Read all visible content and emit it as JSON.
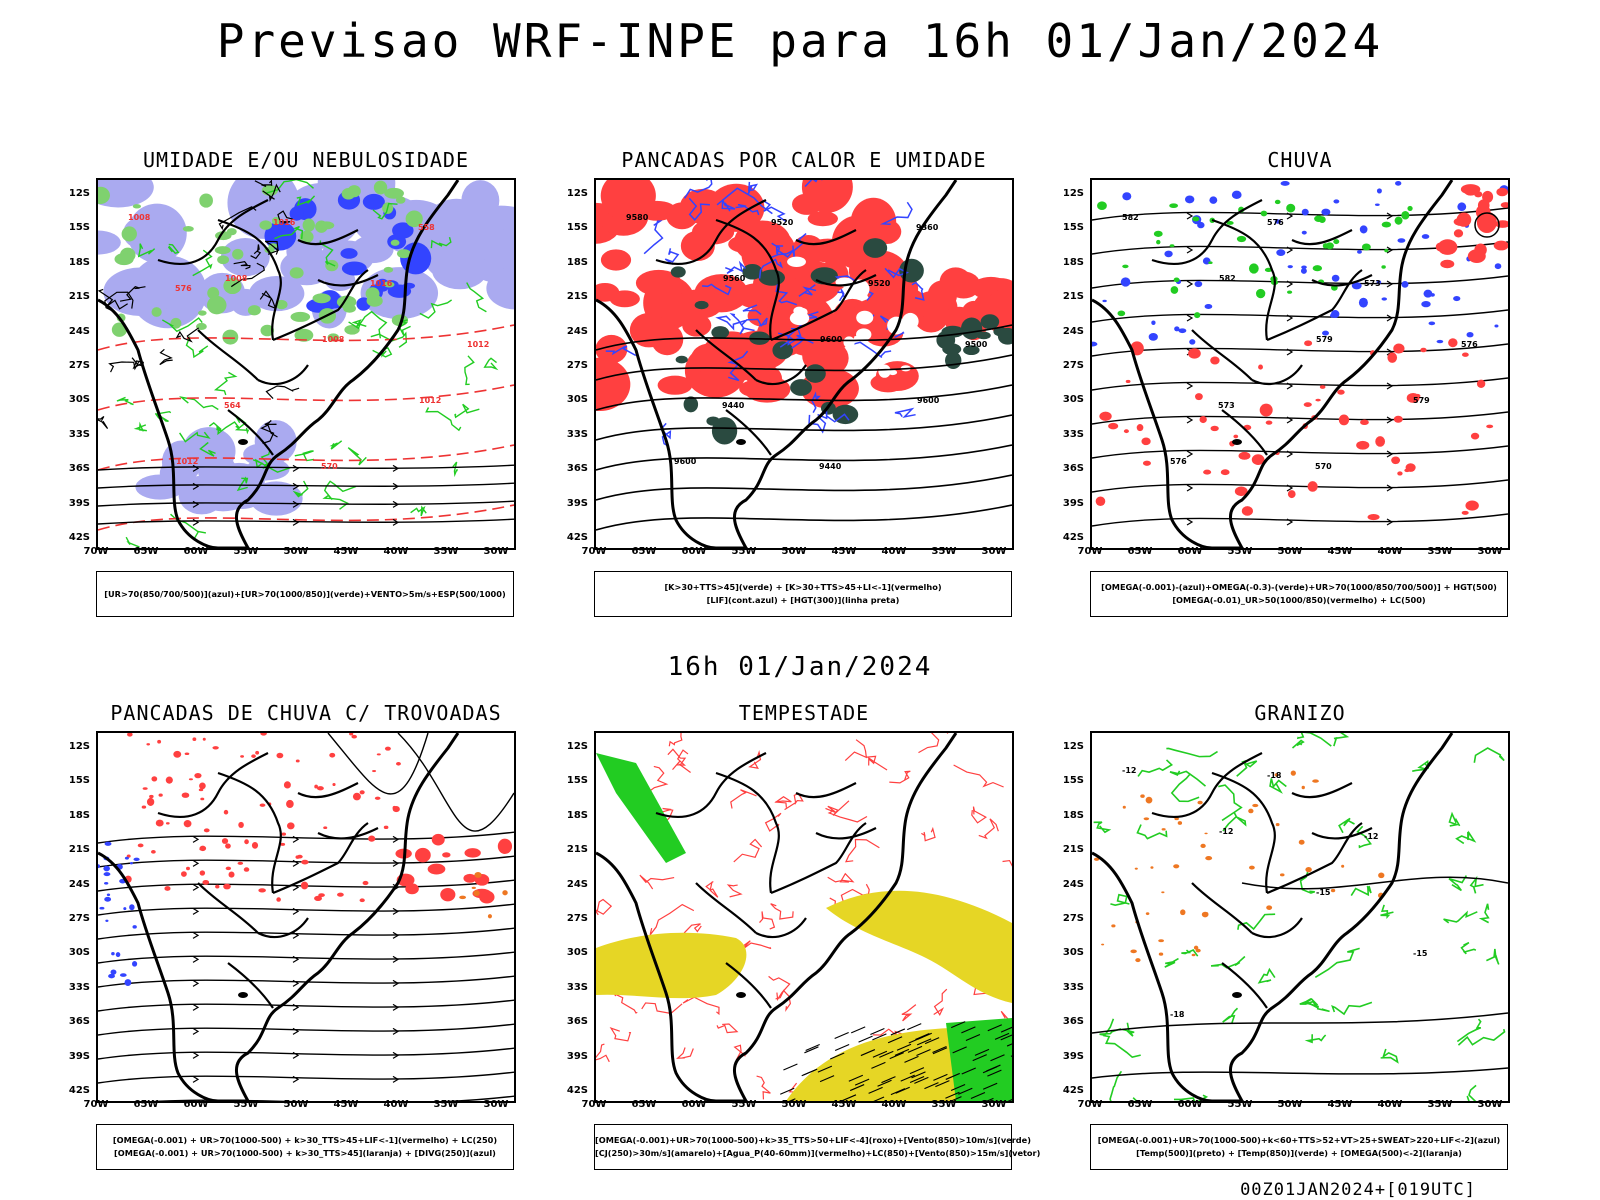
{
  "title": "Previsao WRF-INPE  para 16h 01/Jan/2024",
  "subtitle": "16h 01/Jan/2024",
  "footer": "00Z01JAN2024+[019UTC]",
  "lat_labels": [
    "12S",
    "15S",
    "18S",
    "21S",
    "24S",
    "27S",
    "30S",
    "33S",
    "36S",
    "39S",
    "42S"
  ],
  "lon_labels": [
    "70W",
    "65W",
    "60W",
    "55W",
    "50W",
    "45W",
    "40W",
    "35W",
    "30W"
  ],
  "colors": {
    "red": "#ff4040",
    "green": "#22cc22",
    "blue": "#3344ff",
    "lavender": "#aaaaf0",
    "yellow": "#e6d625",
    "orange": "#ee7722",
    "dark_teal": "#2a4a40"
  },
  "panels": [
    {
      "id": "umidade",
      "title": "UMIDADE E/OU NEBULOSIDADE",
      "legend": [
        "[UR>70(850/700/500)](azul)+[UR>70(1000/850)](verde)+VENTO>5m/s+ESP(500/1000)"
      ],
      "contour_labels": [
        "1008",
        "1008",
        "1008",
        "1012",
        "1012",
        "1016",
        "1016",
        "1012",
        "564",
        "570",
        "558",
        "576"
      ]
    },
    {
      "id": "pancadas-calor",
      "title": "PANCADAS POR CALOR E UMIDADE",
      "legend": [
        "[K>30+TTS>45](verde) + [K>30+TTS>45+LI<-1](vermelho)",
        "[LIF](cont.azul) + [HGT(300)](linha preta)"
      ],
      "contour_labels": [
        "9580",
        "9560",
        "9600",
        "9600",
        "9600",
        "9520",
        "9520",
        "9500",
        "9440",
        "9440",
        "9360"
      ]
    },
    {
      "id": "chuva",
      "title": "CHUVA",
      "legend": [
        "[OMEGA(-0.001)-(azul)+OMEGA(-0.3)-(verde)+UR>70(1000/850/700/500)] + HGT(500)",
        "[OMEGA(-0.01)_UR>50(1000/850)(vermelho) + LC(500)"
      ],
      "contour_labels": [
        "582",
        "582",
        "579",
        "579",
        "576",
        "576",
        "573",
        "576",
        "573",
        "570"
      ]
    },
    {
      "id": "pancadas-trovoadas",
      "title": "PANCADAS DE CHUVA C/ TROVOADAS",
      "legend": [
        "[OMEGA(-0.001) + UR>70(1000-500) + k>30_TTS>45+LIF<-1](vermelho) + LC(250)",
        "[OMEGA(-0.001) + UR>70(1000-500) + k>30_TTS>45](laranja) + [DIVG(250)](azul)"
      ],
      "contour_labels": []
    },
    {
      "id": "tempestade",
      "title": "TEMPESTADE",
      "legend": [
        "[OMEGA(-0.001)+UR>70(1000-500)+k>35_TTS>50+LIF<-4](roxo)+[Vento(850)>10m/s](verde)",
        "[CJ(250)>30m/s](amarelo)+[Agua_P(40-60mm)](vermelho)+LC(850)+[Vento(850)>15m/s](vetor)"
      ],
      "contour_labels": []
    },
    {
      "id": "granizo",
      "title": "GRANIZO",
      "legend": [
        "[OMEGA(-0.001)+UR>70(1000-500)+k<60+TTS>52+VT>25+SWEAT>220+LIF<-2](azul)",
        "[Temp(500)](preto) + [Temp(850)](verde) + [OMEGA(500)<-2](laranja)"
      ],
      "contour_labels": [
        "-12",
        "-12",
        "-15",
        "-15",
        "-18",
        "-18",
        "-12"
      ]
    }
  ]
}
